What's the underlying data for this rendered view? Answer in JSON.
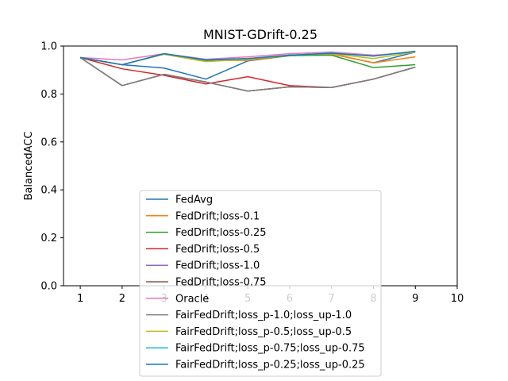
{
  "chart_data": {
    "type": "line",
    "title": "MNIST-GDrift-0.25",
    "xlabel": "",
    "ylabel": "BalancedACC",
    "xlim": [
      0.6,
      10
    ],
    "ylim": [
      0,
      1.0
    ],
    "xticks": [
      1,
      2,
      3,
      4,
      5,
      6,
      7,
      8,
      9,
      10
    ],
    "yticks": [
      0.0,
      0.2,
      0.4,
      0.6,
      0.8,
      1.0
    ],
    "ytick_labels": [
      "0.0",
      "0.2",
      "0.4",
      "0.6",
      "0.8",
      "1.0"
    ],
    "grid": false,
    "legend_position": "lower-center",
    "x": [
      1,
      2,
      3,
      4,
      5,
      6,
      7,
      8,
      9
    ],
    "series": [
      {
        "name": "FedAvg",
        "color": "#1f77b4",
        "values": [
          0.952,
          0.922,
          0.908,
          0.862,
          0.938,
          0.96,
          0.967,
          0.93,
          0.975
        ]
      },
      {
        "name": "FedDrift;loss-0.1",
        "color": "#ff7f0e",
        "values": [
          0.952,
          0.922,
          0.968,
          0.94,
          0.94,
          0.96,
          0.967,
          0.93,
          0.955
        ]
      },
      {
        "name": "FedDrift;loss-0.25",
        "color": "#2ca02c",
        "values": [
          0.952,
          0.922,
          0.968,
          0.94,
          0.945,
          0.96,
          0.962,
          0.91,
          0.922
        ]
      },
      {
        "name": "FedDrift;loss-0.5",
        "color": "#d62728",
        "values": [
          0.952,
          0.905,
          0.878,
          0.842,
          0.872,
          0.835,
          0.827,
          0.862,
          0.912
        ]
      },
      {
        "name": "FedDrift;loss-1.0",
        "color": "#9467bd",
        "values": [
          0.952,
          0.835,
          0.882,
          0.85,
          0.812,
          0.83,
          0.827,
          0.862,
          0.912
        ]
      },
      {
        "name": "FedDrift;loss-0.75",
        "color": "#8c564b",
        "values": [
          0.952,
          0.835,
          0.882,
          0.85,
          0.812,
          0.83,
          0.827,
          0.862,
          0.912
        ]
      },
      {
        "name": "Oracle",
        "color": "#e377c2",
        "values": [
          0.952,
          0.942,
          0.968,
          0.945,
          0.955,
          0.968,
          0.975,
          0.962,
          0.975
        ]
      },
      {
        "name": "FairFedDrift;loss_p-1.0;loss_up-1.0",
        "color": "#7f7f7f",
        "values": [
          0.952,
          0.835,
          0.882,
          0.85,
          0.812,
          0.83,
          0.827,
          0.862,
          0.912
        ]
      },
      {
        "name": "FairFedDrift;loss_p-0.5;loss_up-0.5",
        "color": "#bcbd22",
        "values": [
          0.952,
          0.922,
          0.965,
          0.935,
          0.945,
          0.962,
          0.968,
          0.948,
          0.975
        ]
      },
      {
        "name": "FairFedDrift;loss_p-0.75;loss_up-0.75",
        "color": "#17becf",
        "values": [
          0.952,
          0.922,
          0.968,
          0.942,
          0.948,
          0.962,
          0.97,
          0.958,
          0.978
        ]
      },
      {
        "name": "FairFedDrift;loss_p-0.25;loss_up-0.25",
        "color": "#1f77b4",
        "values": [
          0.952,
          0.922,
          0.968,
          0.942,
          0.948,
          0.962,
          0.97,
          0.958,
          0.978
        ]
      }
    ]
  }
}
